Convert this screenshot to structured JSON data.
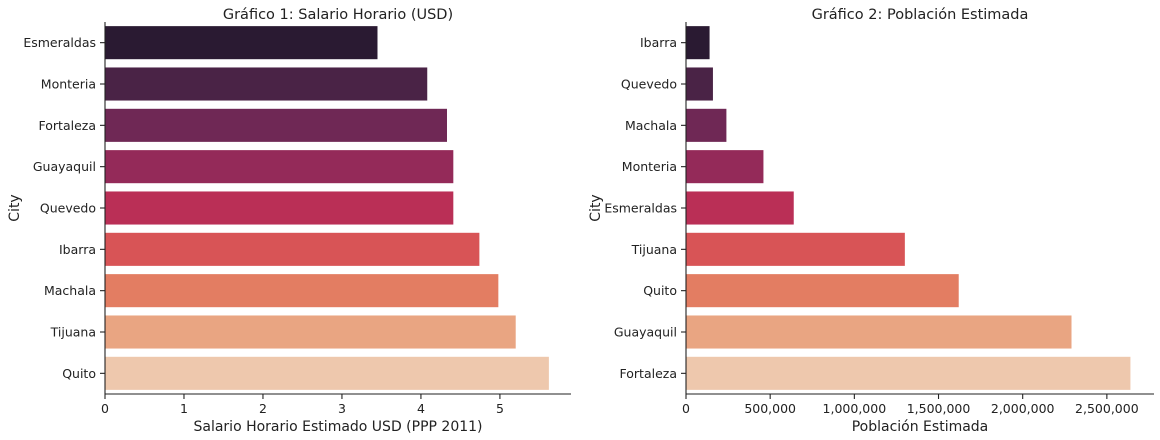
{
  "chart_data": [
    {
      "type": "bar",
      "orientation": "horizontal",
      "title": "Gráfico 1: Salario Horario (USD)",
      "xlabel": "Salario Horario Estimado USD (PPP 2011)",
      "ylabel": "City",
      "categories": [
        "Esmeraldas",
        "Monteria",
        "Fortaleza",
        "Guayaquil",
        "Quevedo",
        "Ibarra",
        "Machala",
        "Tijuana",
        "Quito"
      ],
      "values": [
        3.45,
        4.08,
        4.33,
        4.41,
        4.41,
        4.74,
        4.98,
        5.2,
        5.62
      ],
      "xlim": [
        0,
        5.9
      ],
      "xticks": [
        0,
        1,
        2,
        3,
        4,
        5
      ],
      "xtick_labels": [
        "0",
        "1",
        "2",
        "3",
        "4",
        "5"
      ],
      "colors": [
        "#2a1a32",
        "#4a2346",
        "#6f2855",
        "#942a59",
        "#ba2f56",
        "#d85456",
        "#e37d62",
        "#e9a582",
        "#eec8ad"
      ],
      "grid": false
    },
    {
      "type": "bar",
      "orientation": "horizontal",
      "title": "Gráfico 2: Población Estimada",
      "xlabel": "Población Estimada",
      "ylabel": "City",
      "categories": [
        "Ibarra",
        "Quevedo",
        "Machala",
        "Monteria",
        "Esmeraldas",
        "Tijuana",
        "Quito",
        "Guayaquil",
        "Fortaleza"
      ],
      "values": [
        140000,
        160000,
        240000,
        460000,
        640000,
        1300000,
        1620000,
        2290000,
        2640000
      ],
      "xlim": [
        0,
        2780000
      ],
      "xticks": [
        0,
        500000,
        1000000,
        1500000,
        2000000,
        2500000
      ],
      "xtick_labels": [
        "0",
        "500,000",
        "1,000,000",
        "1,500,000",
        "2,000,000",
        "2,500,000"
      ],
      "colors": [
        "#2a1a32",
        "#4a2346",
        "#6f2855",
        "#942a59",
        "#ba2f56",
        "#d85456",
        "#e37d62",
        "#e9a582",
        "#eec8ad"
      ],
      "grid": false
    }
  ]
}
